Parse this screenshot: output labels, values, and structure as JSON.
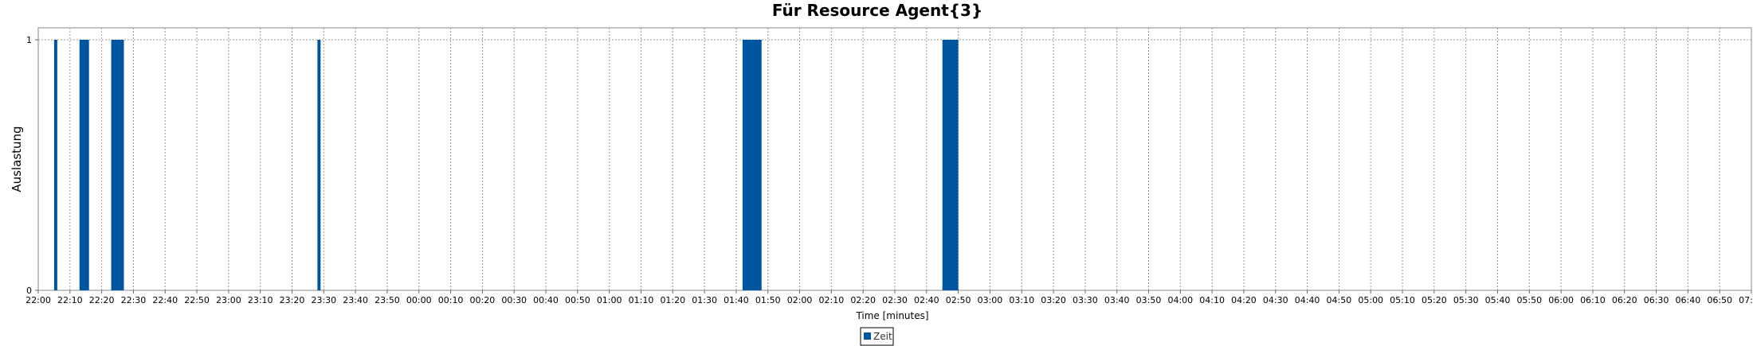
{
  "chart_data": {
    "type": "bar",
    "title": "Für Resource Agent{3}",
    "xlabel": "Time [minutes]",
    "ylabel": "Auslastung",
    "x_tick_labels": [
      "22:00",
      "22:10",
      "22:20",
      "22:30",
      "22:40",
      "22:50",
      "23:00",
      "23:10",
      "23:20",
      "23:30",
      "23:40",
      "23:50",
      "00:00",
      "00:10",
      "00:20",
      "00:30",
      "00:40",
      "00:50",
      "01:00",
      "01:10",
      "01:20",
      "01:30",
      "01:40",
      "01:50",
      "02:00",
      "02:10",
      "02:20",
      "02:30",
      "02:40",
      "02:50",
      "03:00",
      "03:10",
      "03:20",
      "03:30",
      "03:40",
      "03:50",
      "04:00",
      "04:10",
      "04:20",
      "04:30",
      "04:40",
      "04:50",
      "05:00",
      "05:10",
      "05:20",
      "05:30",
      "05:40",
      "05:50",
      "06:00",
      "06:10",
      "06:20",
      "06:30",
      "06:40",
      "06:50",
      "07:00"
    ],
    "y_tick_labels": [
      "0",
      "1"
    ],
    "xlim": [
      "22:00",
      "07:00"
    ],
    "ylim": [
      0,
      1
    ],
    "grid": true,
    "legend_position": "bottom-center",
    "series": [
      {
        "name": "Zeit",
        "color": "#0055a0",
        "bars": [
          {
            "start": "22:05",
            "end": "22:06",
            "value": 1
          },
          {
            "start": "22:13",
            "end": "22:16",
            "value": 1
          },
          {
            "start": "22:23",
            "end": "22:27",
            "value": 1
          },
          {
            "start": "23:28",
            "end": "23:29",
            "value": 1
          },
          {
            "start": "01:42",
            "end": "01:48",
            "value": 1
          },
          {
            "start": "02:45",
            "end": "02:50",
            "value": 1
          }
        ]
      }
    ]
  }
}
